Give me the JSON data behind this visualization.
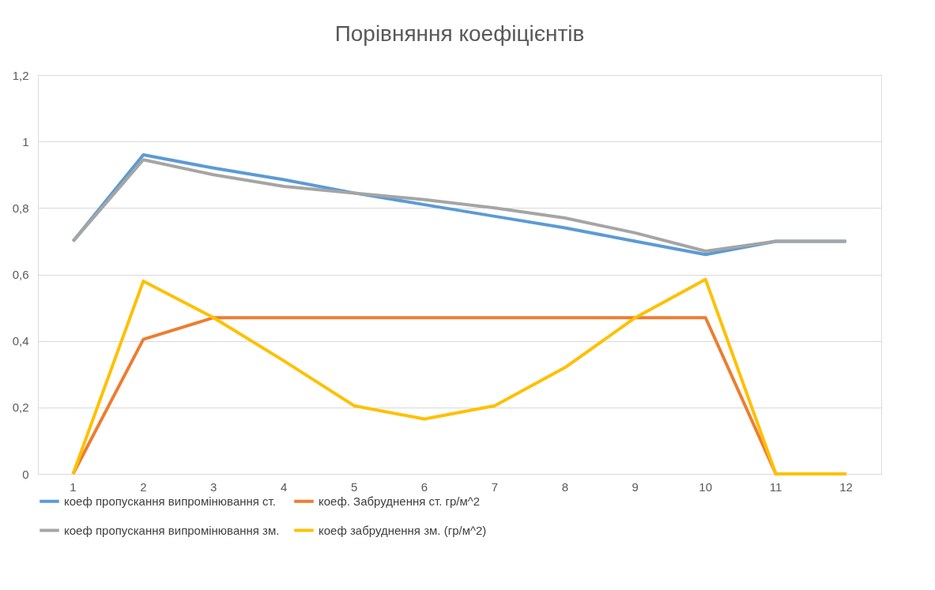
{
  "chart_data": {
    "type": "line",
    "title": "Порівняння  коефіцієнтів",
    "categories": [
      "1",
      "2",
      "3",
      "4",
      "5",
      "6",
      "7",
      "8",
      "9",
      "10",
      "11",
      "12"
    ],
    "series": [
      {
        "name": "коеф пропускання випромінювання ст.",
        "color": "#5b9bd5",
        "values": [
          0.7,
          0.96,
          0.92,
          0.885,
          0.845,
          0.81,
          0.775,
          0.74,
          0.7,
          0.66,
          0.7,
          0.7
        ]
      },
      {
        "name": "коеф. Забруднення ст. гр/м^2",
        "color": "#ed7d31",
        "values": [
          0,
          0.405,
          0.47,
          0.47,
          0.47,
          0.47,
          0.47,
          0.47,
          0.47,
          0.47,
          0,
          0
        ]
      },
      {
        "name": "коеф пропускання випромінювання зм.",
        "color": "#a5a5a5",
        "values": [
          0.7,
          0.945,
          0.9,
          0.865,
          0.845,
          0.825,
          0.8,
          0.77,
          0.725,
          0.67,
          0.7,
          0.7
        ]
      },
      {
        "name": "коеф забруднення зм. (гр/м^2)",
        "color": "#ffc000",
        "values": [
          0,
          0.58,
          0.47,
          0.34,
          0.205,
          0.165,
          0.205,
          0.32,
          0.47,
          0.585,
          0,
          0
        ]
      }
    ],
    "ylim": [
      0,
      1.2
    ],
    "yticks": [
      0,
      {
        "value": 0.2,
        "label": "0,2"
      },
      {
        "value": 0.4,
        "label": "0,4"
      },
      {
        "value": 0.6,
        "label": "0,6"
      },
      {
        "value": 0.8,
        "label": "0,8"
      },
      1,
      {
        "value": 1.2,
        "label": "1,2"
      }
    ],
    "grid": "y",
    "legend": "bottom",
    "marker": "none",
    "line_style": "solid"
  }
}
